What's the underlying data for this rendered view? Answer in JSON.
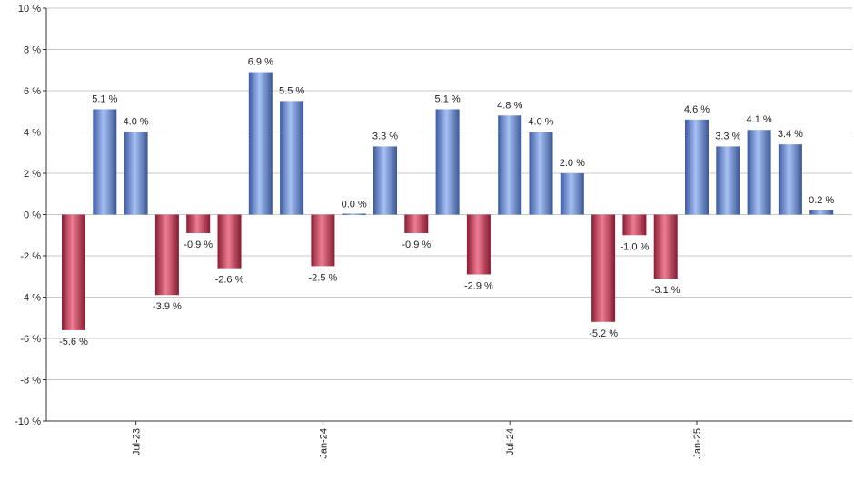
{
  "chart_data": {
    "type": "bar",
    "ylim": [
      -10,
      10
    ],
    "y_ticks": [
      10,
      8,
      6,
      4,
      2,
      0,
      -2,
      -4,
      -6,
      -8,
      -10
    ],
    "y_tick_suffix": " %",
    "grid": true,
    "x_tick_labels": [
      {
        "label": "Jul-23",
        "index": 2
      },
      {
        "label": "Jan-24",
        "index": 8
      },
      {
        "label": "Jul-24",
        "index": 14
      },
      {
        "label": "Jan-25",
        "index": 20
      }
    ],
    "values": [
      -5.6,
      5.1,
      4.0,
      -3.9,
      -0.9,
      -2.6,
      6.9,
      5.5,
      -2.5,
      0.0,
      3.3,
      -0.9,
      5.1,
      -2.9,
      4.8,
      4.0,
      2.0,
      -5.2,
      -1.0,
      -3.1,
      4.6,
      3.3,
      4.1,
      3.4,
      0.2
    ],
    "data_labels": [
      "-5.6 %",
      "5.1 %",
      "4.0 %",
      "-3.9 %",
      "-0.9 %",
      "-2.6 %",
      "6.9 %",
      "5.5 %",
      "-2.5 %",
      "0.0 %",
      "3.3 %",
      "-0.9 %",
      "5.1 %",
      "-2.9 %",
      "4.8 %",
      "4.0 %",
      "2.0 %",
      "-5.2 %",
      "-1.0 %",
      "-3.1 %",
      "4.6 %",
      "3.3 %",
      "4.1 %",
      "3.4 %",
      "0.2 %"
    ],
    "colors": {
      "positive": "#7b9de0",
      "negative": "#c8344f",
      "grid": "#c8c8c8",
      "axis": "#333333"
    }
  }
}
